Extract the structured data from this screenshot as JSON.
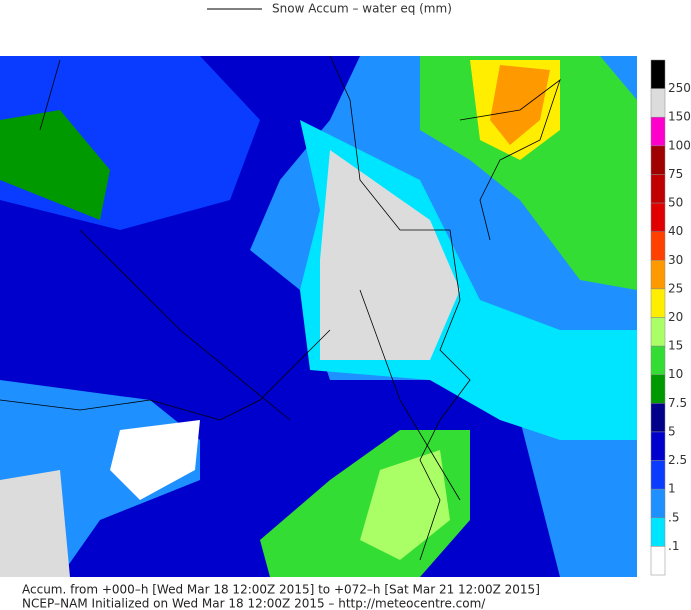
{
  "header": {
    "title": "Snow Accum – water eq (mm)"
  },
  "legend": {
    "colors": [
      "#000000",
      "#dcdcdc",
      "#ff00cc",
      "#a00000",
      "#c00000",
      "#e00000",
      "#ff4000",
      "#ff9900",
      "#ffee00",
      "#aaff66",
      "#33dd33",
      "#009900",
      "#00008b",
      "#0000cd",
      "#0a3cff",
      "#1e90ff",
      "#00e5ff",
      "#ffffff"
    ],
    "labels": [
      "250",
      "150",
      "100",
      "75",
      "50",
      "40",
      "30",
      "25",
      "20",
      "15",
      "10",
      "7.5",
      "5",
      "2.5",
      "1",
      ".5",
      ".1"
    ]
  },
  "footer": {
    "lines": [
      "Accum. from +000–h [Wed Mar 18 12:00Z 2015] to +072–h [Sat Mar 21 12:00Z 2015]",
      "NCEP–NAM Initialized on Wed Mar 18 12:00Z 2015 – http://meteocentre.com/"
    ]
  }
}
